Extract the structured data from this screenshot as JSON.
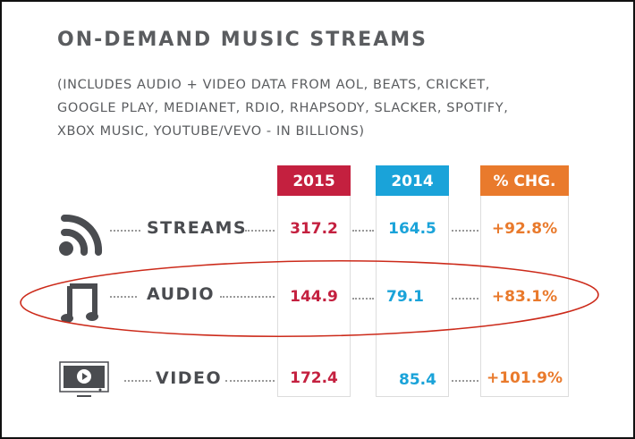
{
  "title": "ON-DEMAND MUSIC STREAMS",
  "subtitle_lines": [
    "(INCLUDES AUDIO + VIDEO DATA FROM AOL, BEATS, CRICKET,",
    "GOOGLE PLAY, MEDIANET, RDIO, RHAPSODY, SLACKER, SPOTIFY,",
    "XBOX MUSIC, YOUTUBE/VEVO - IN BILLIONS)"
  ],
  "colors": {
    "c2015": "#c4203f",
    "c2014": "#1aa3d9",
    "chg": "#e97a2c",
    "text": "#4a4c50",
    "highlight": "#cc2a1a"
  },
  "chart_data": {
    "type": "table",
    "title": "ON-DEMAND MUSIC STREAMS",
    "columns": [
      "2015",
      "2014",
      "% CHG."
    ],
    "rows": [
      {
        "label": "STREAMS",
        "icon": "rss-icon",
        "v2015": "317.2",
        "v2014": "164.5",
        "chg": "+92.8%"
      },
      {
        "label": "AUDIO",
        "icon": "music-note-icon",
        "v2015": "144.9",
        "v2014": "79.1",
        "chg": "+83.1%",
        "highlighted": true
      },
      {
        "label": "VIDEO",
        "icon": "tv-play-icon",
        "v2015": "172.4",
        "v2014": "85.4",
        "chg": "+101.9%"
      }
    ]
  }
}
